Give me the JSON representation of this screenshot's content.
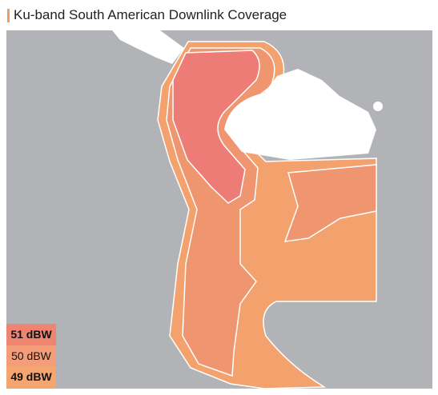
{
  "title": "Ku-band South American Downlink Coverage",
  "legend": [
    "51 dBW",
    "50 dBW",
    "49 dBW"
  ]
}
